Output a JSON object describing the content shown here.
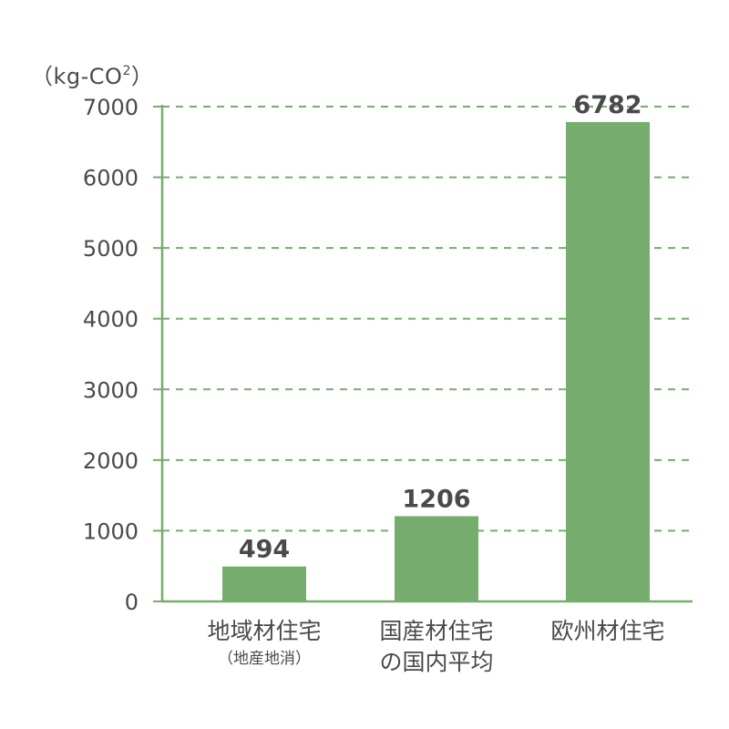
{
  "unit": {
    "open": "（",
    "text": "kg-CO",
    "sup": "2",
    "close": "）"
  },
  "chart_data": {
    "type": "bar",
    "categories": [
      "地域材住宅（地産地消）",
      "国産材住宅の国内平均",
      "欧州材住宅"
    ],
    "category_labels": [
      {
        "line1": "地域材住宅",
        "sub": "（地産地消）"
      },
      {
        "line1": "国産材住宅",
        "line2": "の国内平均"
      },
      {
        "line1": "欧州材住宅"
      }
    ],
    "values": [
      494,
      1206,
      6782
    ],
    "value_labels": [
      "494",
      "1206",
      "6782"
    ],
    "ylim": [
      0,
      7000
    ],
    "yticks": [
      0,
      1000,
      2000,
      3000,
      4000,
      5000,
      6000,
      7000
    ],
    "ytick_labels": [
      "0",
      "1000",
      "2000",
      "3000",
      "4000",
      "5000",
      "6000",
      "7000"
    ],
    "grid": true,
    "grid_style": "dashed",
    "title": "",
    "xlabel": "",
    "ylabel": "（kg-CO2）"
  },
  "colors": {
    "bar": "#76ad6e",
    "axis": "#76ad6e",
    "grid": "#76ad6e",
    "text": "#4a4a4a"
  }
}
